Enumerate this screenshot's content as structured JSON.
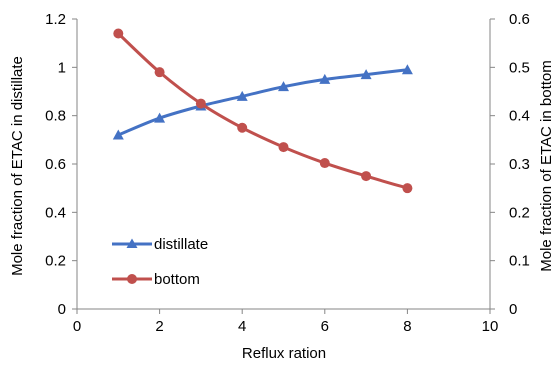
{
  "chart_data": {
    "type": "line",
    "xlabel": "Reflux ration",
    "ylabel_left": "Mole fraction of ETAC in distillate",
    "ylabel_right": "Mole fraction of ETAC in bottom",
    "xlim": [
      0,
      10
    ],
    "ylim_left": [
      0,
      1.2
    ],
    "ylim_right": [
      0,
      0.6
    ],
    "x_ticks": [
      "0",
      "2",
      "4",
      "6",
      "8",
      "10"
    ],
    "y_left_ticks": [
      "0",
      "0.2",
      "0.4",
      "0.6",
      "0.8",
      "1",
      "1.2"
    ],
    "y_right_ticks": [
      "0",
      "0.1",
      "0.2",
      "0.3",
      "0.4",
      "0.5",
      "0.6"
    ],
    "grid": false,
    "legend_position": "lower-left",
    "series": [
      {
        "name": "distillate",
        "axis": "left",
        "marker": "triangle",
        "color": "#4472C4",
        "x": [
          1,
          2,
          3,
          4,
          5,
          6,
          7,
          8
        ],
        "values": [
          0.72,
          0.79,
          0.84,
          0.88,
          0.92,
          0.95,
          0.97,
          0.99
        ]
      },
      {
        "name": "bottom",
        "axis": "right",
        "marker": "circle",
        "color": "#C0504D",
        "x": [
          1,
          2,
          3,
          4,
          5,
          6,
          7,
          8
        ],
        "values": [
          0.57,
          0.49,
          0.425,
          0.375,
          0.335,
          0.302,
          0.275,
          0.25
        ]
      }
    ]
  }
}
